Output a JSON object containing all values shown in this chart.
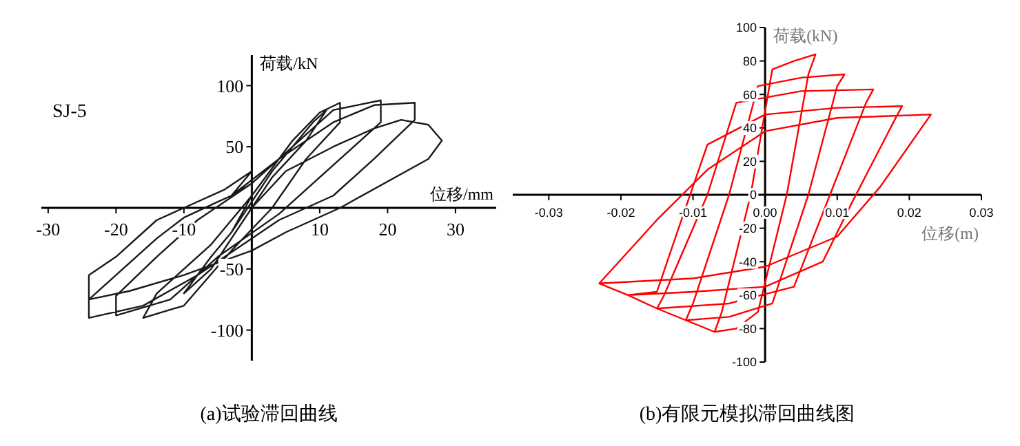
{
  "chart_data": [
    {
      "type": "line",
      "title": "(a)试验滞回曲线",
      "xlabel": "位移/mm",
      "ylabel": "荷载/kN",
      "annotations": [
        "SJ-5"
      ],
      "xlim": [
        -31,
        36
      ],
      "ylim": [
        -125,
        125
      ],
      "xticks": [
        -30,
        -20,
        -10,
        10,
        20,
        30
      ],
      "yticks": [
        -100,
        -50,
        50,
        100
      ],
      "series": [
        {
          "color": "#1a1a1a",
          "x": [
            0,
            5,
            12,
            18,
            22,
            26,
            28,
            26,
            13,
            5,
            0,
            -10,
            -18,
            -24,
            -24,
            -20,
            -14,
            -10,
            -4,
            0,
            -3,
            4,
            12,
            18,
            24,
            24,
            18,
            12,
            8,
            4,
            0,
            -8,
            -16,
            -24,
            -24,
            -20,
            -14,
            -10,
            -5,
            -3,
            0,
            8,
            12,
            19,
            19,
            14,
            8,
            4,
            -5,
            -12,
            -20,
            -20,
            -14,
            -8,
            0,
            0,
            6,
            10,
            13,
            13,
            8,
            3,
            -3,
            -10,
            -16,
            -14,
            -6,
            0,
            -3,
            3,
            9,
            11,
            8,
            3,
            0,
            -6,
            -10,
            -6,
            -3
          ],
          "values": [
            0,
            30,
            50,
            65,
            72,
            68,
            55,
            40,
            0,
            -20,
            -35,
            -55,
            -68,
            -75,
            -55,
            -40,
            -10,
            0,
            15,
            30,
            10,
            40,
            70,
            84,
            86,
            72,
            40,
            10,
            0,
            -10,
            -25,
            -55,
            -80,
            -90,
            -75,
            -55,
            -25,
            -8,
            5,
            10,
            20,
            60,
            80,
            88,
            70,
            45,
            15,
            -5,
            -40,
            -75,
            -88,
            -72,
            -40,
            -10,
            20,
            10,
            55,
            78,
            86,
            70,
            40,
            0,
            -35,
            -80,
            -90,
            -70,
            -30,
            10,
            -20,
            30,
            70,
            80,
            55,
            25,
            0,
            -50,
            -70,
            -40,
            -20
          ]
        }
      ]
    },
    {
      "type": "line",
      "title": "(b)有限元模拟滞回曲线图",
      "xlabel": "位移(m)",
      "ylabel": "荷载(kN)",
      "xlim": [
        -0.035,
        0.03
      ],
      "ylim": [
        -100,
        100
      ],
      "xticks": [
        -0.03,
        -0.02,
        -0.01,
        {
          "value": 0,
          "label": "0.00"
        },
        0.01,
        0.02,
        0.03
      ],
      "yticks": [
        -100,
        -80,
        -60,
        -40,
        -20,
        0,
        20,
        40,
        60,
        80,
        100
      ],
      "series": [
        {
          "color": "#ff0000",
          "x": [
            -0.023,
            -0.015,
            -0.008,
            0,
            0.01,
            0.023,
            0.016,
            0.01,
            0,
            -0.01,
            -0.023,
            -0.019,
            -0.015,
            -0.012,
            -0.008,
            0,
            0.01,
            0.019,
            0.018,
            0.012,
            0.008,
            0,
            -0.01,
            -0.019,
            -0.015,
            -0.014,
            -0.008,
            -0.004,
            0.005,
            0.015,
            0.014,
            0.009,
            0.004,
            -0.005,
            -0.015,
            -0.011,
            -0.01,
            -0.005,
            -0.001,
            0.005,
            0.011,
            0.01,
            0.006,
            0.001,
            -0.005,
            -0.011,
            -0.007,
            -0.006,
            -0.002,
            0.001,
            0.004,
            0.007,
            0.006,
            0.003,
            -0.001,
            -0.004,
            -0.007
          ],
          "values": [
            -53,
            -15,
            15,
            38,
            46,
            48,
            5,
            -25,
            -43,
            -50,
            -53,
            -60,
            -58,
            -20,
            30,
            48,
            52,
            53,
            45,
            -5,
            -40,
            -55,
            -58,
            -60,
            -68,
            -60,
            0,
            55,
            62,
            63,
            55,
            0,
            -55,
            -65,
            -68,
            -75,
            -65,
            0,
            65,
            70,
            72,
            65,
            0,
            -65,
            -73,
            -75,
            -82,
            -70,
            0,
            75,
            80,
            84,
            72,
            0,
            -70,
            -80,
            -82
          ]
        }
      ]
    }
  ]
}
